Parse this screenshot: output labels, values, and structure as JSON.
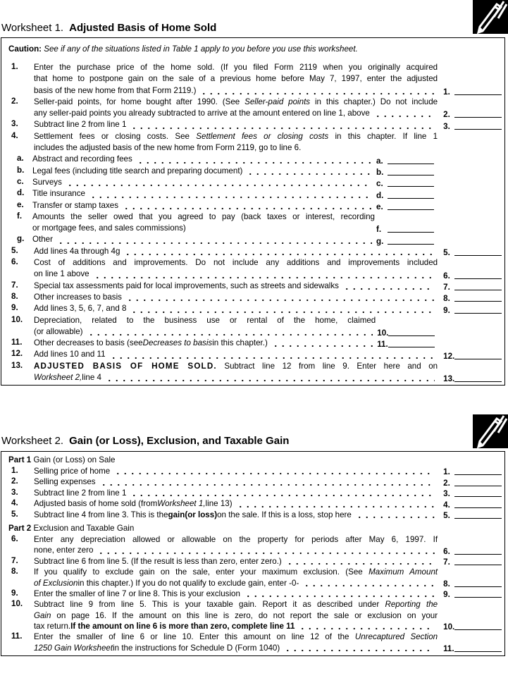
{
  "icons": {
    "pencil": "pencil-icon"
  },
  "ws1": {
    "label": "Worksheet 1.",
    "title": "Adjusted Basis of Home Sold",
    "caution_label": "Caution:",
    "caution_text": "See if any of the situations listed in Table 1 apply to you before you use this worksheet.",
    "rows": [
      {
        "num": "1.",
        "ref": "1.",
        "lead": true,
        "lines": [
          [
            "Enter the purchase price of the home sold. (If you filed Form 2119 when you originally acquired"
          ],
          [
            "that home to postpone gain on the sale of a previous home before May 7, 1997, enter the adjusted"
          ],
          [
            "basis of the new home from that Form 2119.)"
          ]
        ]
      },
      {
        "num": "2.",
        "ref": "2.",
        "lead": true,
        "lines": [
          [
            "Seller-paid points, for home bought after 1990. (See ",
            {
              "i": "Seller-paid points"
            },
            " in this chapter.) Do not include"
          ],
          [
            "any seller-paid points you already subtracted to arrive at the amount entered on line 1, above"
          ]
        ]
      },
      {
        "num": "3.",
        "ref": "3.",
        "lead": true,
        "lines": [
          [
            "Subtract line 2 from line 1"
          ]
        ]
      },
      {
        "num": "4.",
        "lead": false,
        "lines": [
          [
            "Settlement fees or closing costs. See ",
            {
              "i": "Settlement fees or closing costs"
            },
            " in this chapter. If line 1"
          ],
          [
            "includes the adjusted basis of the new home from Form 2119, go to line 6."
          ]
        ]
      },
      {
        "sub": "a.",
        "subref": "a.",
        "lead": true,
        "lines": [
          [
            "Abstract and recording fees"
          ]
        ]
      },
      {
        "sub": "b.",
        "subref": "b.",
        "lead": true,
        "lines": [
          [
            "Legal fees (including title search and preparing document)"
          ]
        ]
      },
      {
        "sub": "c.",
        "subref": "c.",
        "lead": true,
        "lines": [
          [
            "Surveys"
          ]
        ]
      },
      {
        "sub": "d.",
        "subref": "d.",
        "lead": true,
        "lines": [
          [
            "Title insurance"
          ]
        ]
      },
      {
        "sub": "e.",
        "subref": "e.",
        "lead": true,
        "lines": [
          [
            "Transfer or stamp taxes"
          ]
        ]
      },
      {
        "sub": "f.",
        "subref": "f.",
        "lead": false,
        "lines": [
          [
            "Amounts the seller owed that you agreed to pay (back taxes or interest, recording"
          ],
          [
            "or mortgage fees, and sales commissions)"
          ]
        ]
      },
      {
        "sub": "g.",
        "subref": "g.",
        "lead": true,
        "lines": [
          [
            "Other"
          ]
        ]
      },
      {
        "num": "5.",
        "ref": "5.",
        "lead": true,
        "lines": [
          [
            "Add lines 4a through 4g"
          ]
        ]
      },
      {
        "num": "6.",
        "ref": "6.",
        "lead": true,
        "lines": [
          [
            "Cost of additions and improvements. Do not include any additions and improvements included"
          ],
          [
            "on line 1 above"
          ]
        ]
      },
      {
        "num": "7.",
        "ref": "7.",
        "lead": true,
        "lines": [
          [
            "Special tax assessments paid for local improvements, such as streets and sidewalks"
          ]
        ]
      },
      {
        "num": "8.",
        "ref": "8.",
        "lead": true,
        "lines": [
          [
            "Other increases to basis"
          ]
        ]
      },
      {
        "num": "9.",
        "ref": "9.",
        "lead": true,
        "lines": [
          [
            "Add lines 3, 5, 6, 7, and 8"
          ]
        ]
      },
      {
        "num": "10.",
        "subref": "10.",
        "lead": true,
        "lines": [
          [
            "Depreciation, related to the business use or rental of the home, claimed"
          ],
          [
            "(or allowable)"
          ]
        ]
      },
      {
        "num": "11.",
        "subref": "11.",
        "lead": true,
        "lines": [
          [
            "Other decreases to basis (see ",
            {
              "i": "Decreases to basis"
            },
            " in this chapter.)"
          ]
        ]
      },
      {
        "num": "12.",
        "ref": "12.",
        "lead": true,
        "lines": [
          [
            "Add lines 10 and 11"
          ]
        ]
      },
      {
        "num": "13.",
        "ref": "13.",
        "lead": true,
        "lines": [
          [
            {
              "b": "ADJUSTED BASIS OF HOME SOLD."
            },
            " Subtract line 12 from line 9. Enter here and on"
          ],
          [
            {
              "i": "Worksheet 2,"
            },
            " line 4"
          ]
        ]
      }
    ]
  },
  "ws2": {
    "label": "Worksheet 2.",
    "title": "Gain (or Loss), Exclusion, and Taxable Gain",
    "parts": [
      {
        "label": "Part 1",
        "title": "Gain (or Loss) on Sale",
        "rows": [
          {
            "num": "1.",
            "ref": "1.",
            "lead": true,
            "lines": [
              [
                "Selling price of home"
              ]
            ]
          },
          {
            "num": "2.",
            "ref": "2.",
            "lead": true,
            "lines": [
              [
                "Selling expenses"
              ]
            ]
          },
          {
            "num": "3.",
            "ref": "3.",
            "lead": true,
            "lines": [
              [
                "Subtract line 2 from line 1"
              ]
            ]
          },
          {
            "num": "4.",
            "ref": "4.",
            "lead": true,
            "lines": [
              [
                "Adjusted basis of home sold (from ",
                {
                  "i": "Worksheet 1,"
                },
                " line 13)"
              ]
            ]
          },
          {
            "num": "5.",
            "ref": "5.",
            "lead": true,
            "lines": [
              [
                "Subtract line 4 from line 3. This is the ",
                {
                  "b": "gain"
                },
                " ",
                {
                  "b": "(or loss)"
                },
                " on the sale. If this is a loss, stop here"
              ]
            ]
          }
        ]
      },
      {
        "label": "Part 2",
        "title": "Exclusion and Taxable Gain",
        "rows": [
          {
            "num": "6.",
            "ref": "6.",
            "lead": true,
            "lines": [
              [
                "Enter any depreciation allowed or allowable on the property for periods after May 6, 1997. If"
              ],
              [
                "none, enter zero"
              ]
            ]
          },
          {
            "num": "7.",
            "ref": "7.",
            "lead": true,
            "lines": [
              [
                "Subtract line 6 from line 5. (If the result is less than zero, enter zero.)"
              ]
            ]
          },
          {
            "num": "8.",
            "ref": "8.",
            "lead": true,
            "lines": [
              [
                "If you qualify to exclude gain on the sale, enter your maximum exclusion. (See ",
                {
                  "i": "Maximum Amount"
                }
              ],
              [
                {
                  "i": "of Exclusion"
                },
                " in this chapter.) If you do not qualify to exclude gain, enter -0-"
              ]
            ]
          },
          {
            "num": "9.",
            "ref": "9.",
            "lead": true,
            "lines": [
              [
                "Enter the smaller of line 7 or line 8. This is your exclusion"
              ]
            ]
          },
          {
            "num": "10.",
            "ref": "10.",
            "lead": true,
            "lines": [
              [
                "Subtract line 9 from line 5. This is your taxable gain. Report it as described under ",
                {
                  "i": "Reporting the"
                }
              ],
              [
                {
                  "i": "Gain"
                },
                " on page 16. If the amount on this line is zero, do not report the sale or exclusion on your"
              ],
              [
                "tax return. ",
                {
                  "b": "If the amount on line 6 is more than zero, complete line 11"
                }
              ]
            ]
          },
          {
            "num": "11.",
            "ref": "11.",
            "lead": true,
            "lines": [
              [
                "Enter the smaller of line 6 or line 10. Enter this amount on line 12 of the ",
                {
                  "i": "Unrecaptured Section"
                }
              ],
              [
                {
                  "i": "1250 Gain Worksheet"
                },
                " in the instructions for Schedule D (Form 1040)"
              ]
            ]
          }
        ]
      }
    ]
  }
}
